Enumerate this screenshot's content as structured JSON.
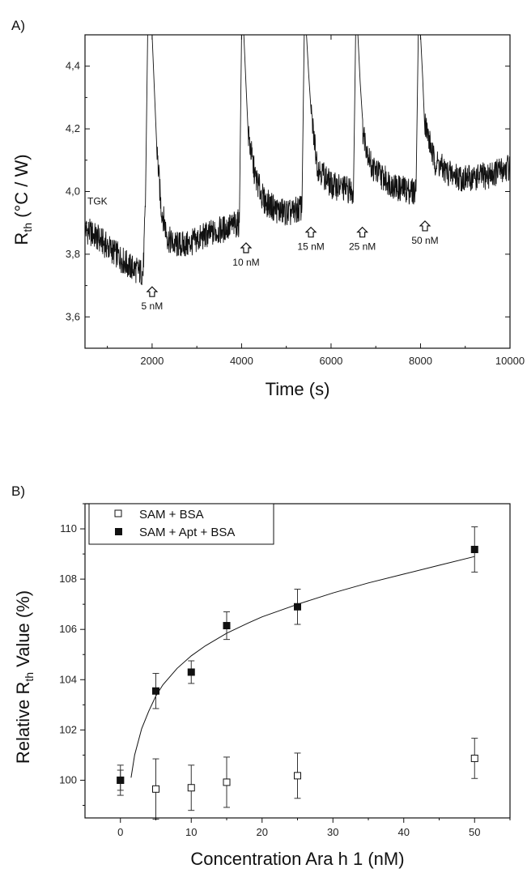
{
  "chart_data": [
    {
      "panel_label": "A)",
      "type": "line",
      "xlabel": "Time (s)",
      "ylabel_main": "R",
      "ylabel_sub": "th",
      "ylabel_unit": " (°C / W)",
      "xlim": [
        500,
        10000
      ],
      "ylim": [
        3.5,
        4.5
      ],
      "xticks": [
        2000,
        4000,
        6000,
        8000,
        10000
      ],
      "xtick_labels": [
        "2000",
        "4000",
        "6000",
        "8000",
        "10000"
      ],
      "yticks": [
        3.6,
        3.8,
        4.0,
        4.2,
        4.4
      ],
      "ytick_labels": [
        "3,6",
        "3,8",
        "4,0",
        "4,2",
        "4,4"
      ],
      "baseline_label": "TGK",
      "series": [
        {
          "x": [
            500,
            800,
            1200,
            1500,
            1800,
            1850,
            1900,
            2000,
            2100,
            2200,
            2350,
            2500,
            2800,
            3200,
            3600,
            3950,
            4000,
            4050,
            4150,
            4300,
            4500,
            4800,
            5100,
            5350,
            5400,
            5450,
            5550,
            5700,
            6000,
            6300,
            6500,
            6550,
            6600,
            6700,
            6900,
            7200,
            7500,
            7900,
            7950,
            8000,
            8100,
            8300,
            8600,
            9000,
            9500,
            10000
          ],
          "y": [
            3.88,
            3.85,
            3.8,
            3.76,
            3.74,
            3.95,
            4.5,
            4.5,
            4.15,
            3.95,
            3.85,
            3.83,
            3.83,
            3.86,
            3.88,
            3.9,
            4.5,
            4.5,
            4.18,
            4.05,
            3.97,
            3.94,
            3.93,
            3.95,
            4.5,
            4.5,
            4.25,
            4.08,
            4.02,
            4.01,
            4.0,
            4.5,
            4.5,
            4.2,
            4.08,
            4.04,
            4.01,
            4.0,
            4.5,
            4.5,
            4.22,
            4.1,
            4.06,
            4.04,
            4.05,
            4.08
          ]
        }
      ],
      "annotations": [
        {
          "label": "5 nM",
          "x": 2000,
          "y": 3.67
        },
        {
          "label": "10 nM",
          "x": 4100,
          "y": 3.81
        },
        {
          "label": "15 nM",
          "x": 5550,
          "y": 3.86
        },
        {
          "label": "25 nM",
          "x": 6700,
          "y": 3.86
        },
        {
          "label": "50 nM",
          "x": 8100,
          "y": 3.88
        }
      ]
    },
    {
      "panel_label": "B)",
      "type": "scatter",
      "xlabel": "Concentration Ara h 1 (nM)",
      "ylabel_main": "Relative R",
      "ylabel_sub": "th",
      "ylabel_unit": " Value (%)",
      "xlim": [
        -5,
        55
      ],
      "ylim": [
        98.5,
        111
      ],
      "xticks": [
        0,
        10,
        20,
        30,
        40,
        50
      ],
      "xtick_labels": [
        "0",
        "10",
        "20",
        "30",
        "40",
        "50"
      ],
      "yticks": [
        100,
        102,
        104,
        106,
        108,
        110
      ],
      "ytick_labels": [
        "100",
        "102",
        "104",
        "106",
        "108",
        "110"
      ],
      "legend_position": "top-left",
      "series": [
        {
          "name": "SAM + BSA",
          "marker": "open-square",
          "x": [
            0,
            5,
            10,
            15,
            25,
            50
          ],
          "y": [
            100.0,
            99.65,
            99.7,
            99.92,
            100.18,
            100.87
          ],
          "err": [
            0.6,
            1.2,
            0.9,
            1.0,
            0.9,
            0.8
          ]
        },
        {
          "name": "SAM + Apt + BSA",
          "marker": "filled-square",
          "x": [
            0,
            5,
            10,
            15,
            25,
            50
          ],
          "y": [
            100.0,
            103.55,
            104.3,
            106.15,
            106.9,
            109.18
          ],
          "err": [
            0.4,
            0.7,
            0.45,
            0.55,
            0.7,
            0.9
          ]
        }
      ],
      "fit_curve": {
        "x": [
          1.5,
          2,
          3,
          4,
          5,
          6,
          8,
          10,
          12,
          15,
          18,
          20,
          25,
          30,
          35,
          40,
          45,
          50
        ],
        "y": [
          100.1,
          101.0,
          102.05,
          102.75,
          103.35,
          103.8,
          104.45,
          104.95,
          105.35,
          105.85,
          106.25,
          106.5,
          107.0,
          107.45,
          107.85,
          108.2,
          108.55,
          108.9
        ]
      }
    }
  ]
}
